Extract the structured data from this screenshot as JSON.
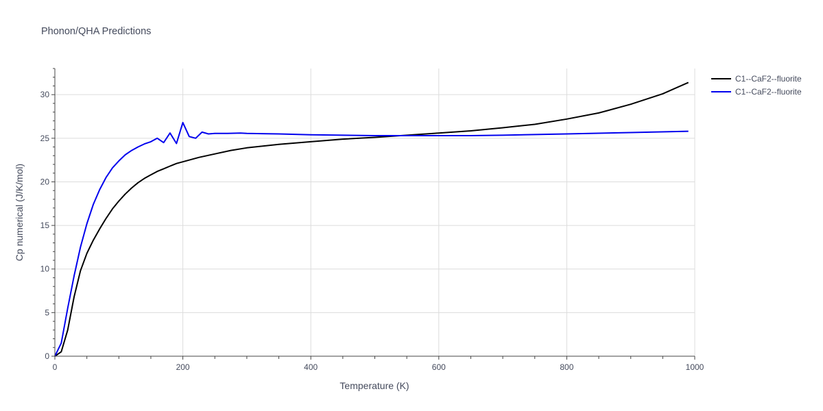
{
  "chart_data": {
    "type": "line",
    "title": "Phonon/QHA Predictions",
    "xlabel": "Temperature (K)",
    "ylabel": "Cp numerical (J/K/mol)",
    "xlim": [
      0,
      1000
    ],
    "ylim": [
      0,
      33
    ],
    "xticks": [
      0,
      200,
      400,
      600,
      800,
      1000
    ],
    "yticks": [
      0,
      5,
      10,
      15,
      20,
      25,
      30
    ],
    "grid": true,
    "legend_position": "top-right",
    "series": [
      {
        "name": "C1--CaF2--fluorite",
        "color": "#000000",
        "x": [
          0,
          10,
          20,
          30,
          40,
          50,
          60,
          70,
          80,
          90,
          100,
          110,
          120,
          130,
          140,
          150,
          160,
          170,
          180,
          190,
          200,
          225,
          250,
          275,
          300,
          350,
          400,
          450,
          500,
          550,
          600,
          650,
          700,
          750,
          800,
          850,
          900,
          950,
          990
        ],
        "y": [
          0,
          0.5,
          3.0,
          6.8,
          9.8,
          11.8,
          13.3,
          14.6,
          15.8,
          16.9,
          17.8,
          18.6,
          19.3,
          19.9,
          20.4,
          20.8,
          21.2,
          21.5,
          21.8,
          22.1,
          22.3,
          22.8,
          23.2,
          23.6,
          23.9,
          24.3,
          24.6,
          24.9,
          25.1,
          25.35,
          25.6,
          25.85,
          26.2,
          26.6,
          27.2,
          27.9,
          28.9,
          30.1,
          31.4
        ]
      },
      {
        "name": "C1--CaF2--fluorite",
        "color": "#0000ee",
        "x": [
          0,
          10,
          20,
          30,
          40,
          50,
          60,
          70,
          80,
          90,
          100,
          110,
          120,
          130,
          140,
          150,
          160,
          170,
          180,
          190,
          200,
          210,
          220,
          230,
          240,
          250,
          270,
          290,
          300,
          350,
          400,
          450,
          500,
          550,
          600,
          650,
          700,
          800,
          900,
          990
        ],
        "y": [
          0,
          1.5,
          5.5,
          9.2,
          12.5,
          15.2,
          17.4,
          19.1,
          20.5,
          21.6,
          22.4,
          23.1,
          23.6,
          24.0,
          24.35,
          24.6,
          25.0,
          24.5,
          25.6,
          24.4,
          26.8,
          25.2,
          25.0,
          25.7,
          25.5,
          25.55,
          25.55,
          25.6,
          25.55,
          25.5,
          25.4,
          25.35,
          25.3,
          25.3,
          25.3,
          25.3,
          25.35,
          25.5,
          25.65,
          25.8
        ]
      }
    ]
  }
}
